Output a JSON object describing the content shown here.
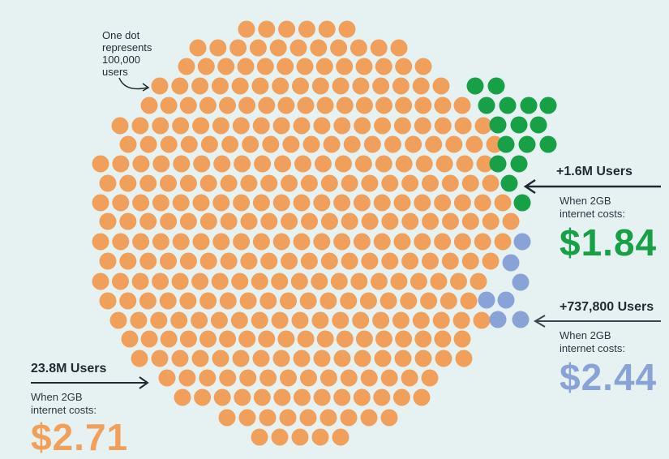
{
  "note": {
    "lines": [
      "One dot",
      "represents",
      "100,000",
      "users"
    ]
  },
  "groups": [
    {
      "id": "base",
      "users_label": "23.8M Users",
      "costs_lines": [
        "When 2GB",
        "internet costs:"
      ],
      "price": "$2.71",
      "color": "#f0a05a",
      "dot_count": 238
    },
    {
      "id": "green",
      "users_label": "+1.6M Users",
      "costs_lines": [
        "When 2GB",
        "internet costs:"
      ],
      "price": "$1.84",
      "color": "#17a046",
      "dot_count": 16
    },
    {
      "id": "blue",
      "users_label": "+737,800 Users",
      "costs_lines": [
        "When 2GB",
        "internet costs:"
      ],
      "price": "$2.44",
      "color": "#8aa3d6",
      "dot_count": 7
    }
  ],
  "colors": {
    "background": "#e6f2f2",
    "text": "#1f2a33",
    "arrow": "#1f2a33"
  }
}
